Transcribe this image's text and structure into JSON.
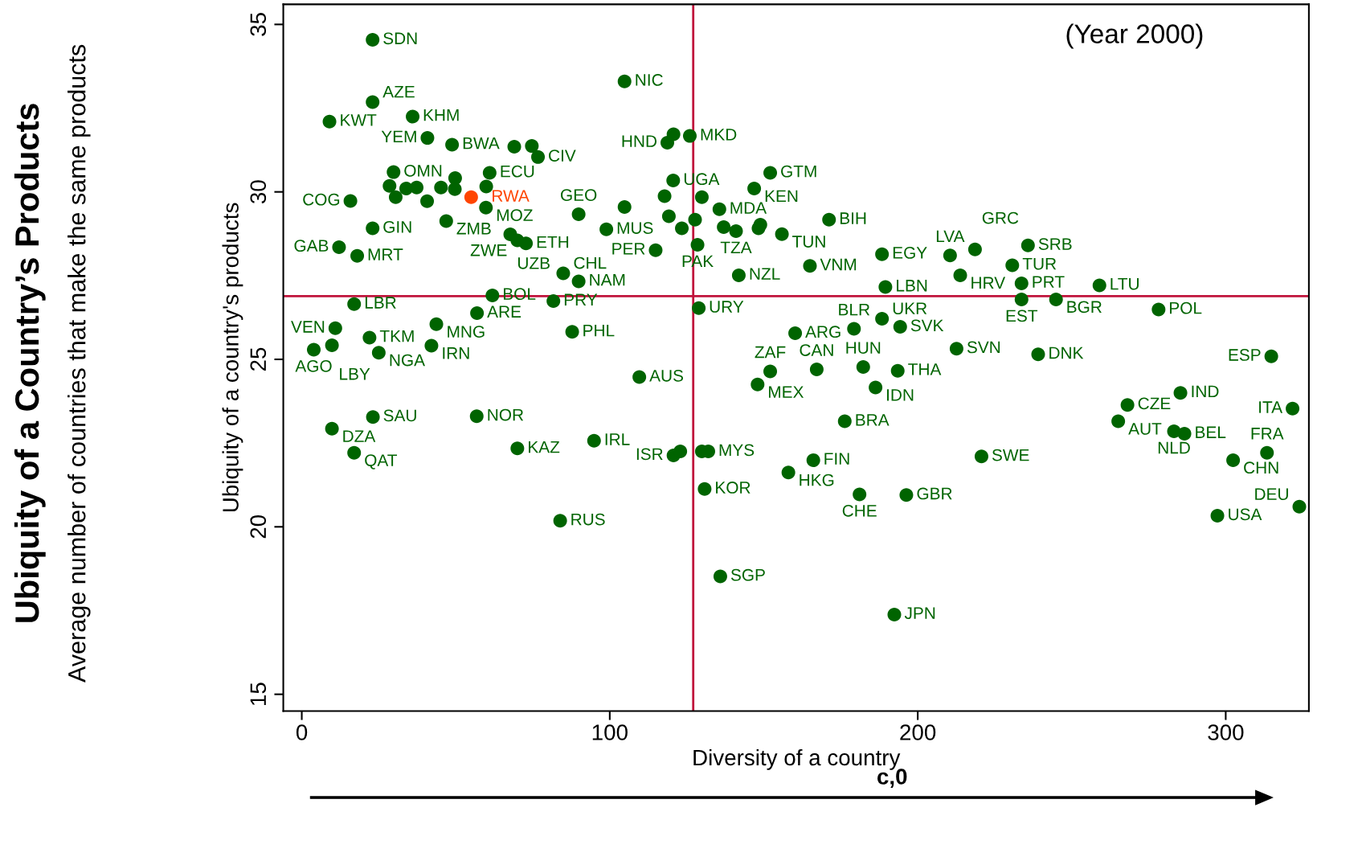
{
  "chart_data": {
    "type": "scatter",
    "title": "Ubiquity of a Country’s Products",
    "subtitle": "Average number of countries that make the same products",
    "xlabel": "Diversity of a country",
    "ylabel": "Ubiquity of a country's products",
    "xlim": [
      -6,
      327
    ],
    "ylim": [
      14.5,
      35.6
    ],
    "xticks": [
      0,
      100,
      200,
      300
    ],
    "yticks": [
      15,
      20,
      25,
      30,
      35
    ],
    "grid": false,
    "marker": "circle",
    "ref_lines": [
      {
        "axis": "x",
        "value": 127.1,
        "color": "#c0143c"
      },
      {
        "axis": "y",
        "value": 26.89,
        "color": "#c0143c"
      }
    ],
    "series": [
      {
        "color": "#006400",
        "x": [
          23.0,
          104.8,
          23.0,
          36.0,
          9.0,
          40.8,
          48.8,
          69.0,
          74.7,
          76.7,
          120.7,
          126.0,
          118.7,
          29.8,
          61.0,
          49.8,
          28.5,
          30.5,
          33.9,
          37.3,
          40.7,
          45.2,
          49.7,
          59.9,
          59.8,
          15.8,
          46.9,
          23.0,
          12.1,
          18.0,
          67.7,
          70.0,
          72.8,
          89.9,
          98.9,
          114.9,
          84.9,
          89.9,
          61.9,
          81.7,
          17.0,
          56.9,
          43.7,
          10.9,
          128.9,
          87.8,
          22.0,
          9.8,
          42.1,
          3.9,
          25.0,
          152.1,
          146.9,
          171.2,
          155.9,
          188.4,
          210.5,
          218.6,
          235.8,
          230.7,
          141.9,
          165.0,
          213.8,
          233.7,
          259.0,
          189.5,
          233.7,
          244.9,
          278.2,
          188.4,
          160.2,
          179.3,
          194.3,
          212.6,
          239.1,
          314.8,
          152.1,
          167.2,
          182.3,
          193.5,
          148.0,
          186.3,
          176.3,
          268.1,
          285.3,
          265.1,
          283.2,
          286.6,
          321.7,
          313.4,
          302.4,
          220.7,
          166.1,
          158.0,
          181.1,
          196.3,
          297.3,
          323.9,
          135.9,
          192.4,
          109.6,
          23.1,
          9.8,
          56.8,
          94.9,
          70.0,
          17.0,
          120.7,
          122.9,
          129.9,
          132.0,
          130.8,
          83.9,
          120.6,
          117.8,
          129.9,
          119.2,
          123.4,
          127.7,
          135.6,
          137.0,
          141.0,
          148.3,
          148.9,
          128.5,
          104.8
        ],
        "values": [
          34.54,
          33.3,
          32.68,
          32.25,
          32.1,
          31.61,
          31.41,
          31.35,
          31.37,
          31.04,
          31.72,
          31.67,
          31.47,
          30.59,
          30.57,
          30.41,
          30.18,
          29.84,
          30.1,
          30.13,
          29.72,
          30.13,
          30.08,
          30.16,
          29.53,
          29.73,
          29.13,
          28.91,
          28.35,
          28.09,
          28.73,
          28.55,
          28.46,
          29.33,
          28.88,
          28.26,
          27.57,
          27.33,
          26.91,
          26.74,
          26.65,
          26.38,
          26.05,
          25.93,
          26.53,
          25.82,
          25.65,
          25.42,
          25.41,
          25.29,
          25.2,
          30.57,
          30.1,
          29.17,
          28.74,
          28.14,
          28.1,
          28.28,
          28.4,
          27.81,
          27.51,
          27.79,
          27.51,
          27.27,
          27.21,
          27.16,
          26.79,
          26.79,
          26.49,
          26.21,
          25.78,
          25.91,
          25.97,
          25.32,
          25.15,
          25.09,
          24.64,
          24.7,
          24.77,
          24.66,
          24.25,
          24.16,
          23.15,
          23.64,
          24.0,
          23.15,
          22.85,
          22.78,
          23.53,
          22.21,
          21.99,
          22.1,
          21.99,
          21.62,
          20.97,
          20.95,
          20.33,
          20.6,
          18.52,
          17.38,
          24.47,
          23.28,
          22.93,
          23.3,
          22.57,
          22.34,
          22.21,
          22.13,
          22.25,
          22.25,
          22.25,
          21.13,
          20.18,
          30.34,
          29.87,
          29.84,
          29.27,
          28.91,
          29.17,
          29.48,
          28.95,
          28.83,
          28.91,
          29.02,
          28.42,
          29.55
        ]
      },
      {
        "color": "#ff4500",
        "x": [
          55.0
        ],
        "values": [
          29.84
        ]
      }
    ],
    "annotations": [
      "(Year 2000)",
      "c,0",
      {
        "text": "SDN",
        "x": 23.0,
        "y": 34.54
      },
      {
        "text": "NIC",
        "x": 104.8,
        "y": 33.3
      },
      {
        "text": "AZE",
        "x": 23.0,
        "y": 32.68
      },
      {
        "text": "KHM",
        "x": 36.0,
        "y": 32.25
      },
      {
        "text": "KWT",
        "x": 9.0,
        "y": 32.1
      },
      {
        "text": "YEM",
        "x": 40.8,
        "y": 31.61
      },
      {
        "text": "BWA",
        "x": 48.8,
        "y": 31.41
      },
      {
        "text": "CIV",
        "x": 76.7,
        "y": 31.04
      },
      {
        "text": "MKD",
        "x": 126.0,
        "y": 31.67
      },
      {
        "text": "HND",
        "x": 118.7,
        "y": 31.47
      },
      {
        "text": "OMN",
        "x": 29.8,
        "y": 30.59
      },
      {
        "text": "ECU",
        "x": 61.0,
        "y": 30.57
      },
      {
        "text": "RWA",
        "x": 55.0,
        "y": 29.84
      },
      {
        "text": "MOZ",
        "x": 59.8,
        "y": 29.53
      },
      {
        "text": "COG",
        "x": 15.8,
        "y": 29.73
      },
      {
        "text": "ZMB",
        "x": 46.9,
        "y": 29.13
      },
      {
        "text": "GIN",
        "x": 23.0,
        "y": 28.91
      },
      {
        "text": "GAB",
        "x": 12.1,
        "y": 28.35
      },
      {
        "text": "MRT",
        "x": 18.0,
        "y": 28.09
      },
      {
        "text": "UZB",
        "x": 67.7,
        "y": 28.73
      },
      {
        "text": "ZWE",
        "x": 70.0,
        "y": 28.55
      },
      {
        "text": "ETH",
        "x": 72.8,
        "y": 28.46
      },
      {
        "text": "GEO",
        "x": 89.9,
        "y": 29.33
      },
      {
        "text": "MUS",
        "x": 98.9,
        "y": 28.88
      },
      {
        "text": "PER",
        "x": 114.9,
        "y": 28.26
      },
      {
        "text": "CHL",
        "x": 84.9,
        "y": 27.57
      },
      {
        "text": "NAM",
        "x": 89.9,
        "y": 27.33
      },
      {
        "text": "BOL",
        "x": 61.9,
        "y": 26.91
      },
      {
        "text": "PRY",
        "x": 81.7,
        "y": 26.74
      },
      {
        "text": "LBR",
        "x": 17.0,
        "y": 26.65
      },
      {
        "text": "ARE",
        "x": 56.9,
        "y": 26.38
      },
      {
        "text": "MNG",
        "x": 43.7,
        "y": 26.05
      },
      {
        "text": "VEN",
        "x": 10.9,
        "y": 25.93
      },
      {
        "text": "URY",
        "x": 128.9,
        "y": 26.53
      },
      {
        "text": "PHL",
        "x": 87.8,
        "y": 25.82
      },
      {
        "text": "TKM",
        "x": 22.0,
        "y": 25.65
      },
      {
        "text": "LBY",
        "x": 9.8,
        "y": 25.42
      },
      {
        "text": "IRN",
        "x": 42.1,
        "y": 25.41
      },
      {
        "text": "AGO",
        "x": 3.9,
        "y": 25.29
      },
      {
        "text": "NGA",
        "x": 25.0,
        "y": 25.2
      },
      {
        "text": "GTM",
        "x": 152.1,
        "y": 30.57
      },
      {
        "text": "KEN",
        "x": 146.9,
        "y": 30.1
      },
      {
        "text": "BIH",
        "x": 171.2,
        "y": 29.17
      },
      {
        "text": "TUN",
        "x": 155.9,
        "y": 28.74
      },
      {
        "text": "EGY",
        "x": 188.4,
        "y": 28.14
      },
      {
        "text": "LVA",
        "x": 210.5,
        "y": 28.1
      },
      {
        "text": "GRC",
        "x": 218.6,
        "y": 28.28
      },
      {
        "text": "SRB",
        "x": 235.8,
        "y": 28.4
      },
      {
        "text": "TUR",
        "x": 230.7,
        "y": 27.81
      },
      {
        "text": "NZL",
        "x": 141.9,
        "y": 27.51
      },
      {
        "text": "VNM",
        "x": 165.0,
        "y": 27.79
      },
      {
        "text": "HRV",
        "x": 213.8,
        "y": 27.51
      },
      {
        "text": "PRT",
        "x": 233.7,
        "y": 27.27
      },
      {
        "text": "LTU",
        "x": 259.0,
        "y": 27.21
      },
      {
        "text": "LBN",
        "x": 189.5,
        "y": 27.16
      },
      {
        "text": "EST",
        "x": 233.7,
        "y": 26.79
      },
      {
        "text": "BGR",
        "x": 244.9,
        "y": 26.79
      },
      {
        "text": "POL",
        "x": 278.2,
        "y": 26.49
      },
      {
        "text": "UKR",
        "x": 188.4,
        "y": 26.21
      },
      {
        "text": "ARG",
        "x": 160.2,
        "y": 25.78
      },
      {
        "text": "BLR",
        "x": 179.3,
        "y": 25.91
      },
      {
        "text": "SVK",
        "x": 194.3,
        "y": 25.97
      },
      {
        "text": "SVN",
        "x": 212.6,
        "y": 25.32
      },
      {
        "text": "DNK",
        "x": 239.1,
        "y": 25.15
      },
      {
        "text": "ESP",
        "x": 314.8,
        "y": 25.09
      },
      {
        "text": "ZAF",
        "x": 152.1,
        "y": 24.64
      },
      {
        "text": "CAN",
        "x": 167.2,
        "y": 24.7
      },
      {
        "text": "HUN",
        "x": 182.3,
        "y": 24.77
      },
      {
        "text": "THA",
        "x": 193.5,
        "y": 24.66
      },
      {
        "text": "MEX",
        "x": 148.0,
        "y": 24.25
      },
      {
        "text": "IDN",
        "x": 186.3,
        "y": 24.16
      },
      {
        "text": "BRA",
        "x": 176.3,
        "y": 23.15
      },
      {
        "text": "CZE",
        "x": 268.1,
        "y": 23.64
      },
      {
        "text": "IND",
        "x": 285.3,
        "y": 24.0
      },
      {
        "text": "AUT",
        "x": 265.1,
        "y": 23.15
      },
      {
        "text": "NLD",
        "x": 283.2,
        "y": 22.85
      },
      {
        "text": "BEL",
        "x": 286.6,
        "y": 22.78
      },
      {
        "text": "ITA",
        "x": 321.7,
        "y": 23.53
      },
      {
        "text": "FRA",
        "x": 313.4,
        "y": 22.21
      },
      {
        "text": "CHN",
        "x": 302.4,
        "y": 21.99
      },
      {
        "text": "SWE",
        "x": 220.7,
        "y": 22.1
      },
      {
        "text": "FIN",
        "x": 166.1,
        "y": 21.99
      },
      {
        "text": "HKG",
        "x": 158.0,
        "y": 21.62
      },
      {
        "text": "CHE",
        "x": 181.1,
        "y": 20.97
      },
      {
        "text": "GBR",
        "x": 196.3,
        "y": 20.95
      },
      {
        "text": "USA",
        "x": 297.3,
        "y": 20.33
      },
      {
        "text": "DEU",
        "x": 323.9,
        "y": 20.6
      },
      {
        "text": "SGP",
        "x": 135.9,
        "y": 18.52
      },
      {
        "text": "JPN",
        "x": 192.4,
        "y": 17.38
      },
      {
        "text": "AUS",
        "x": 109.6,
        "y": 24.47
      },
      {
        "text": "SAU",
        "x": 23.1,
        "y": 23.28
      },
      {
        "text": "DZA",
        "x": 9.8,
        "y": 22.93
      },
      {
        "text": "NOR",
        "x": 56.8,
        "y": 23.3
      },
      {
        "text": "IRL",
        "x": 94.9,
        "y": 22.57
      },
      {
        "text": "KAZ",
        "x": 70.0,
        "y": 22.34
      },
      {
        "text": "QAT",
        "x": 17.0,
        "y": 22.21
      },
      {
        "text": "ISR",
        "x": 120.7,
        "y": 22.13
      },
      {
        "text": "MYS",
        "x": 132.0,
        "y": 22.25
      },
      {
        "text": "KOR",
        "x": 130.8,
        "y": 21.13
      },
      {
        "text": "RUS",
        "x": 83.9,
        "y": 20.18
      },
      {
        "text": "UGA",
        "x": 120.6,
        "y": 30.34
      },
      {
        "text": "MDA",
        "x": 135.6,
        "y": 29.48
      },
      {
        "text": "TZA",
        "x": 141.0,
        "y": 28.83
      },
      {
        "text": "PAK",
        "x": 128.5,
        "y": 28.42
      }
    ]
  }
}
